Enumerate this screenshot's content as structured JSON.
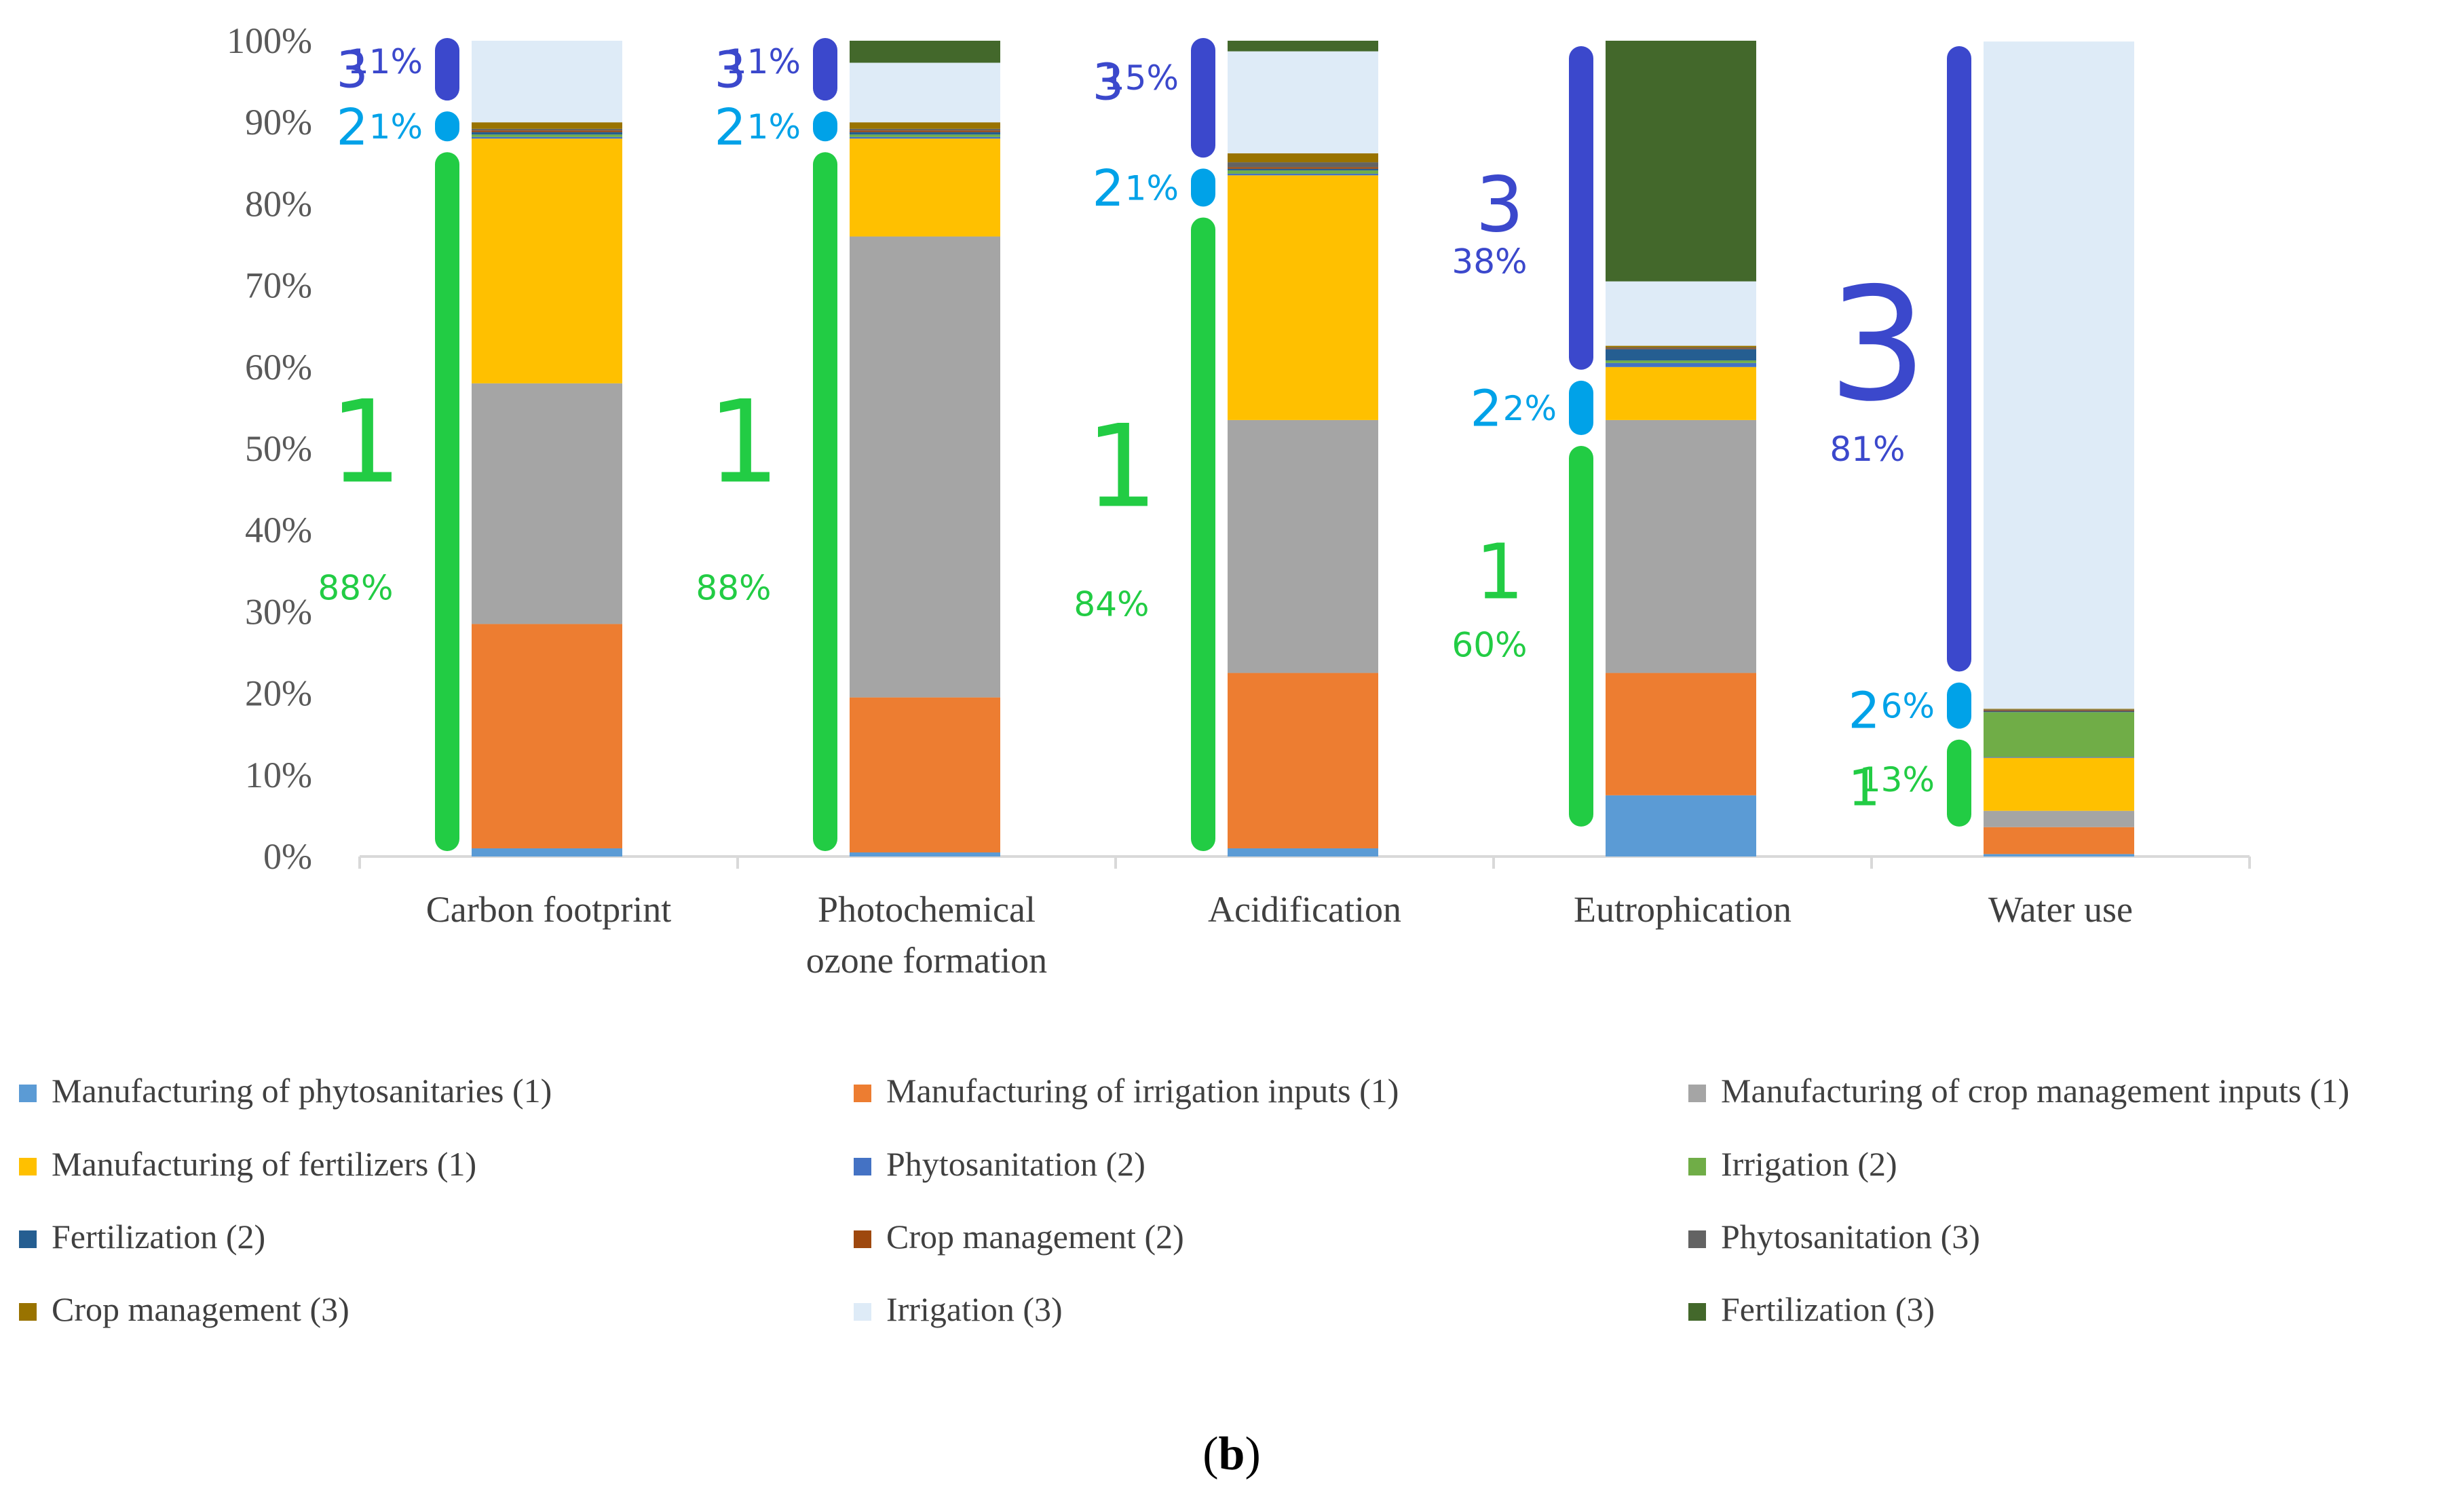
{
  "chart_data": {
    "type": "bar",
    "stacked": true,
    "normalized_percent": true,
    "categories": [
      "Carbon footprint",
      "Photochemical\nozone formation",
      "Acidification",
      "Eutrophication",
      "Water use"
    ],
    "y_ticks": [
      "0%",
      "10%",
      "20%",
      "30%",
      "40%",
      "50%",
      "60%",
      "70%",
      "80%",
      "90%",
      "100%"
    ],
    "ylim": [
      0,
      100
    ],
    "legend_position": "bottom",
    "grid": false,
    "series": [
      {
        "name": "Manufacturing of phytosanitaries (1)",
        "color": "#5B9BD5",
        "values": [
          1,
          0.5,
          1,
          7.5,
          0.3
        ]
      },
      {
        "name": "Manufacturing of irrigation inputs (1)",
        "color": "#ED7D31",
        "values": [
          27.5,
          19,
          21.5,
          15,
          3.3
        ]
      },
      {
        "name": "Manufacturing of crop management inputs (1)",
        "color": "#A5A5A5",
        "values": [
          29.5,
          56.5,
          31,
          31,
          2
        ]
      },
      {
        "name": "Manufacturing of fertilizers (1)",
        "color": "#FFC000",
        "values": [
          30,
          12,
          30,
          6.5,
          6.5
        ]
      },
      {
        "name": "Phytosanitation (2)",
        "color": "#4472C4",
        "values": [
          0.2,
          0.2,
          0.2,
          0.5,
          0.1
        ]
      },
      {
        "name": "Irrigation (2)",
        "color": "#70AD47",
        "values": [
          0.3,
          0.3,
          0.4,
          0.3,
          5.5
        ]
      },
      {
        "name": "Fertilization (2)",
        "color": "#255E91",
        "values": [
          0.3,
          0.3,
          0.2,
          1.4,
          0.1
        ]
      },
      {
        "name": "Crop management (2)",
        "color": "#9E480E",
        "values": [
          0.2,
          0.2,
          0.2,
          0.1,
          0.1
        ]
      },
      {
        "name": "Phytosanitation (3)",
        "color": "#636363",
        "values": [
          0.2,
          0.2,
          0.6,
          0.1,
          0.1
        ]
      },
      {
        "name": "Crop management  (3)",
        "color": "#997300",
        "values": [
          0.8,
          0.8,
          1.1,
          0.2,
          0.1
        ]
      },
      {
        "name": "Irrigation (3)",
        "color": "#DEEBF7",
        "values": [
          10,
          7.3,
          12.5,
          7.9,
          81.8
        ]
      },
      {
        "name": "Fertilization (3)",
        "color": "#43682B",
        "values": [
          0,
          2.7,
          1.3,
          29.5,
          0
        ]
      }
    ],
    "annotations": [
      {
        "category": "Carbon footprint",
        "groups": [
          {
            "group": "1",
            "percent": "88%",
            "from": 1,
            "to": 86,
            "color": "#22CC44",
            "number_size": "large",
            "num_at": 51,
            "pct_at": 33
          },
          {
            "group": "2",
            "percent": "1%",
            "from": 88,
            "to": 91,
            "color": "#00A2E8",
            "number_size": "small",
            "num_at": 89.5,
            "pct_at": 89.5
          },
          {
            "group": "3",
            "percent": "11%",
            "from": 93,
            "to": 100,
            "color": "#3B48CC",
            "number_size": "small",
            "num_at": 96.5,
            "pct_at": 97.5
          }
        ]
      },
      {
        "category": "Photochemical\nozone formation",
        "groups": [
          {
            "group": "1",
            "percent": "88%",
            "from": 1,
            "to": 86,
            "color": "#22CC44",
            "number_size": "large",
            "num_at": 51,
            "pct_at": 33
          },
          {
            "group": "2",
            "percent": "1%",
            "from": 88,
            "to": 91,
            "color": "#00A2E8",
            "number_size": "small",
            "num_at": 89.5,
            "pct_at": 89.5
          },
          {
            "group": "3",
            "percent": "11%",
            "from": 93,
            "to": 100,
            "color": "#3B48CC",
            "number_size": "small",
            "num_at": 96.5,
            "pct_at": 97.5
          }
        ]
      },
      {
        "category": "Acidification",
        "groups": [
          {
            "group": "1",
            "percent": "84%",
            "from": 1,
            "to": 78,
            "color": "#22CC44",
            "number_size": "large",
            "num_at": 48,
            "pct_at": 31
          },
          {
            "group": "2",
            "percent": "1%",
            "from": 80,
            "to": 84,
            "color": "#00A2E8",
            "number_size": "small",
            "num_at": 82,
            "pct_at": 82
          },
          {
            "group": "3",
            "percent": "15%",
            "from": 86,
            "to": 100,
            "color": "#3B48CC",
            "number_size": "small",
            "num_at": 95,
            "pct_at": 95.5
          }
        ]
      },
      {
        "category": "Eutrophication",
        "groups": [
          {
            "group": "1",
            "percent": "60%",
            "from": 4,
            "to": 50,
            "color": "#22CC44",
            "number_size": "medium",
            "num_at": 35,
            "pct_at": 26
          },
          {
            "group": "2",
            "percent": "2%",
            "from": 52,
            "to": 58,
            "color": "#00A2E8",
            "number_size": "small",
            "num_at": 55,
            "pct_at": 55
          },
          {
            "group": "3",
            "percent": "38%",
            "from": 60,
            "to": 99,
            "color": "#3B48CC",
            "number_size": "medium",
            "num_at": 80,
            "pct_at": 73
          }
        ]
      },
      {
        "category": "Water use",
        "groups": [
          {
            "group": "1",
            "percent": "13%",
            "from": 4,
            "to": 14,
            "color": "#22CC44",
            "number_size": "small",
            "num_at": 8.5,
            "pct_at": 9.5
          },
          {
            "group": "2",
            "percent": "6%",
            "from": 16,
            "to": 21,
            "color": "#00A2E8",
            "number_size": "small",
            "num_at": 18,
            "pct_at": 18.5
          },
          {
            "group": "3",
            "percent": "81%",
            "from": 23,
            "to": 99,
            "color": "#3B48CC",
            "number_size": "xlarge",
            "num_at": 63,
            "pct_at": 50
          }
        ]
      }
    ]
  },
  "panel_label": "(b)"
}
